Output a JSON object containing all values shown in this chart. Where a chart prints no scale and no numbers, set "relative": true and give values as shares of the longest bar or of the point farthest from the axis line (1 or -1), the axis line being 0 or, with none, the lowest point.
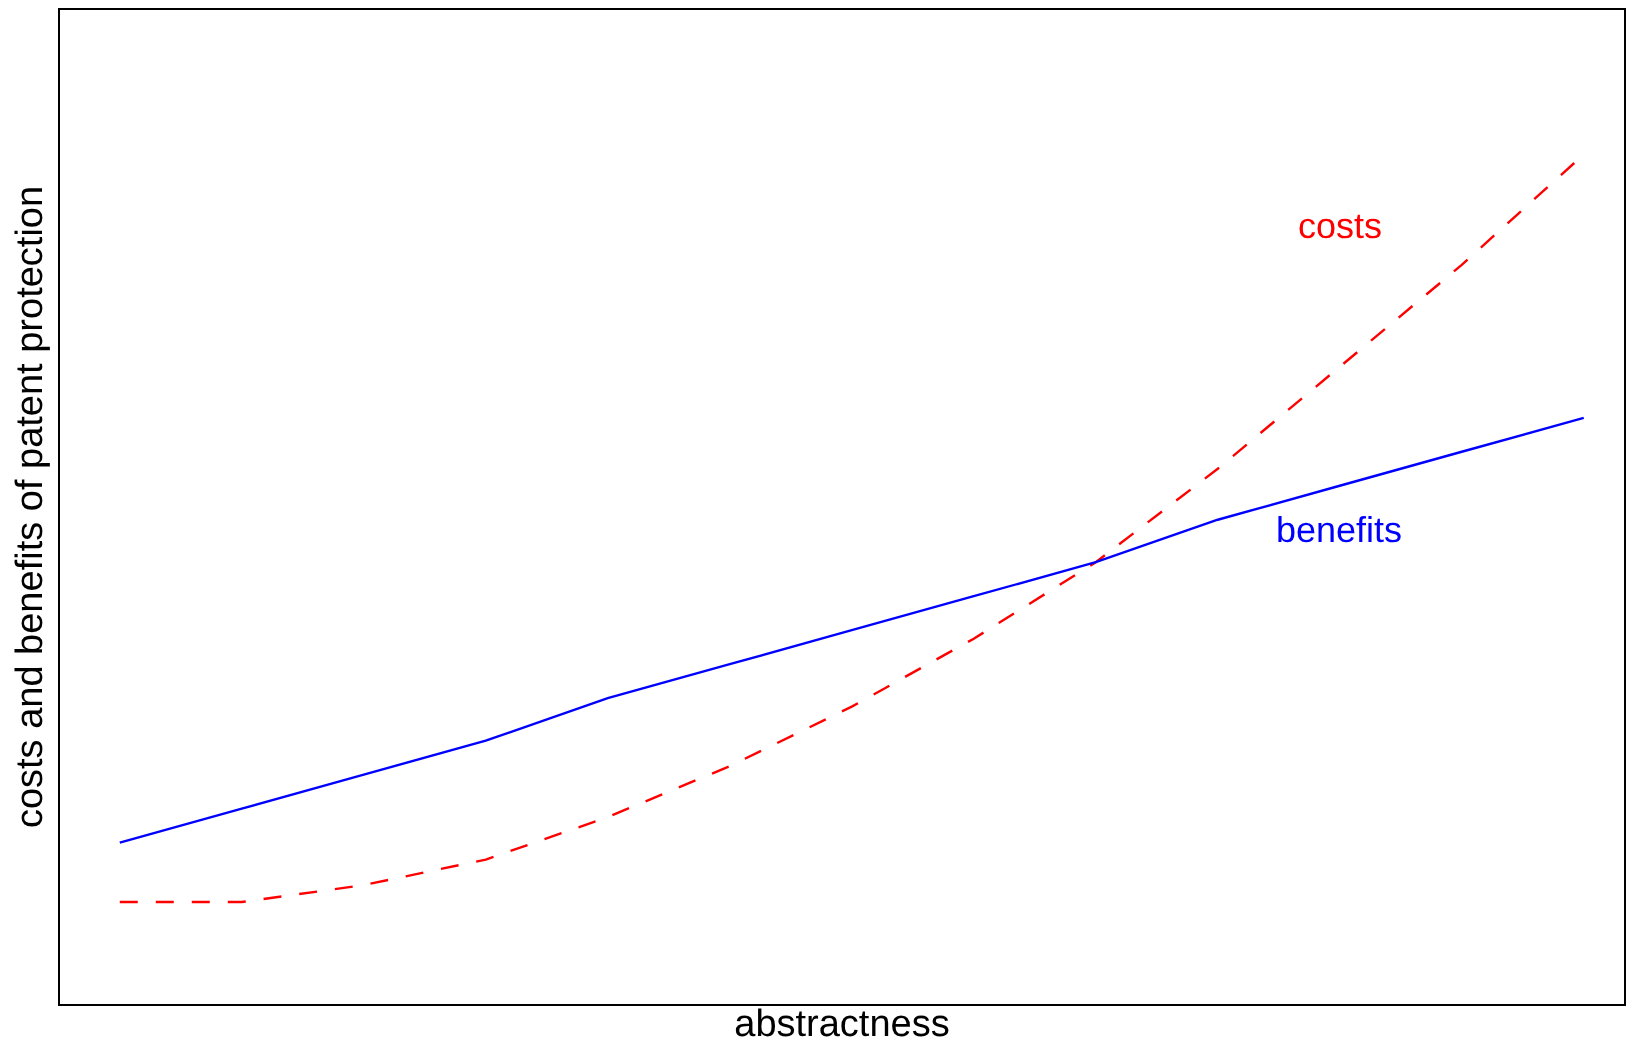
{
  "chart_data": {
    "type": "line",
    "relative": true,
    "xlabel": "abstractness",
    "ylabel": "costs and benefits of patent protection",
    "categories": [
      null,
      null,
      null,
      null,
      null,
      null,
      null,
      null,
      null,
      null,
      null,
      null,
      null
    ],
    "legend": false,
    "series": [
      {
        "name": "costs",
        "color": "#ff0000",
        "line_style": "dashed",
        "values": [
          0.12,
          0.12,
          0.14,
          0.17,
          0.22,
          0.28,
          0.35,
          0.43,
          0.52,
          0.63,
          0.75,
          0.87,
          1
        ]
      },
      {
        "name": "benefits",
        "color": "#0000ff",
        "line_style": "solid",
        "values": [
          0.19,
          0.23,
          0.27,
          0.31,
          0.36,
          0.4,
          0.44,
          0.48,
          0.52,
          0.57,
          0.61,
          0.65,
          0.69
        ]
      }
    ]
  }
}
